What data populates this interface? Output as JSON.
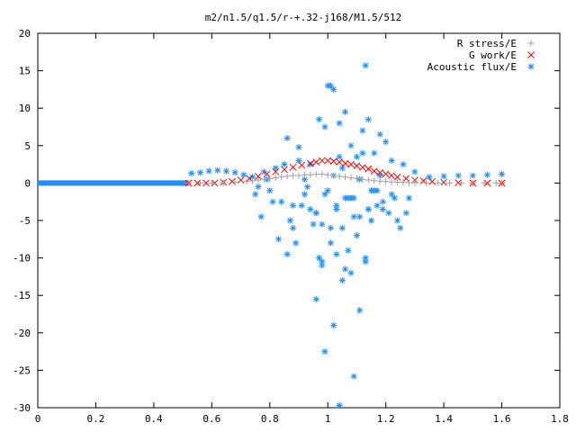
{
  "chart_data": {
    "type": "scatter",
    "title": "m2/n1.5/q1.5/r-+.32-j168/M1.5/512",
    "xlabel": "",
    "ylabel": "",
    "xlim": [
      0,
      1.8
    ],
    "ylim": [
      -30,
      20
    ],
    "xticks": [
      "0",
      "0.2",
      "0.4",
      "0.6",
      "0.8",
      "1",
      "1.2",
      "1.4",
      "1.6",
      "1.8"
    ],
    "yticks": [
      "-30",
      "-25",
      "-20",
      "-15",
      "-10",
      "-5",
      "0",
      "5",
      "10",
      "15",
      "20"
    ],
    "grid": false,
    "legend_position": "top-right",
    "series": [
      {
        "name": "R stress/E",
        "marker": "+",
        "color": "#a0a0a0",
        "x": [
          0.52,
          0.56,
          0.6,
          0.64,
          0.68,
          0.72,
          0.74,
          0.76,
          0.78,
          0.8,
          0.82,
          0.84,
          0.86,
          0.88,
          0.9,
          0.92,
          0.94,
          0.96,
          0.98,
          1.0,
          1.02,
          1.04,
          1.06,
          1.08,
          1.1,
          1.12,
          1.14,
          1.16,
          1.18,
          1.2,
          1.22,
          1.24,
          1.26,
          1.28,
          1.3,
          1.34,
          1.38,
          1.42,
          1.46,
          1.5,
          1.54,
          1.58,
          1.6
        ],
        "y": [
          0,
          0,
          0,
          0.05,
          0.1,
          0.2,
          0.3,
          0.4,
          0.5,
          0.6,
          0.7,
          0.8,
          0.9,
          1.0,
          1.0,
          1.1,
          1.1,
          1.2,
          1.2,
          1.1,
          1.0,
          0.9,
          0.8,
          0.7,
          0.6,
          0.5,
          0.4,
          0.3,
          0.25,
          0.2,
          0.15,
          0.1,
          0.1,
          0.05,
          0.05,
          0,
          0,
          0,
          0,
          0,
          0,
          0,
          0
        ]
      },
      {
        "name": "G work/E",
        "marker": "x",
        "color": "#ff0000",
        "x": [
          0.52,
          0.55,
          0.58,
          0.61,
          0.64,
          0.67,
          0.7,
          0.73,
          0.76,
          0.79,
          0.82,
          0.85,
          0.88,
          0.91,
          0.94,
          0.96,
          0.98,
          1.0,
          1.02,
          1.04,
          1.06,
          1.08,
          1.1,
          1.12,
          1.14,
          1.16,
          1.18,
          1.2,
          1.22,
          1.24,
          1.27,
          1.3,
          1.33,
          1.36,
          1.4,
          1.45,
          1.5,
          1.55,
          1.6
        ],
        "y": [
          0,
          0,
          0,
          0,
          0.1,
          0.2,
          0.4,
          0.6,
          0.9,
          1.2,
          1.5,
          1.8,
          2.1,
          2.4,
          2.6,
          2.8,
          3.0,
          3.0,
          2.9,
          2.8,
          2.6,
          2.5,
          2.3,
          2.1,
          1.9,
          1.6,
          1.4,
          1.2,
          1.0,
          0.8,
          0.6,
          0.4,
          0.3,
          0.2,
          0.1,
          0.05,
          0,
          0,
          0
        ]
      },
      {
        "name": "Acoustic flux/E",
        "marker": "*",
        "color": "#1e90ff",
        "x": [
          0.53,
          0.56,
          0.59,
          0.62,
          0.65,
          0.68,
          0.71,
          0.74,
          0.76,
          0.78,
          0.8,
          0.82,
          0.84,
          0.86,
          0.88,
          0.9,
          0.92,
          0.94,
          0.96,
          0.97,
          0.98,
          0.99,
          1.0,
          1.01,
          1.02,
          1.03,
          1.04,
          1.05,
          1.06,
          1.07,
          1.08,
          1.09,
          1.1,
          1.11,
          1.12,
          1.13,
          1.14,
          1.15,
          1.16,
          1.17,
          1.18,
          1.19,
          1.2,
          1.22,
          1.24,
          1.26,
          1.28,
          1.3,
          1.35,
          1.4,
          1.45,
          1.5,
          1.55,
          1.6,
          0.75,
          0.77,
          0.79,
          0.81,
          0.83,
          0.85,
          0.87,
          0.89,
          0.91,
          0.93,
          0.95,
          0.97,
          0.99,
          1.01,
          1.03,
          1.05,
          1.07,
          1.09,
          1.11,
          1.13,
          1.15,
          1.17,
          1.19,
          1.21,
          1.23,
          1.25,
          1.27,
          0.86,
          0.9,
          0.94,
          0.98,
          1.02,
          1.06,
          1.1,
          1.14,
          1.18,
          1.22,
          0.88,
          0.92,
          0.96,
          1.0,
          1.04,
          1.08,
          1.12,
          1.16,
          0.96,
          0.99,
          1.02,
          1.05,
          1.08,
          1.11,
          1.14,
          1.04,
          1.09,
          1.13,
          0.98,
          1.01,
          1.03,
          1.06
        ],
        "y": [
          1.3,
          1.4,
          1.6,
          1.7,
          1.6,
          1.4,
          1.1,
          0.8,
          -0.5,
          1.5,
          -1.0,
          2.0,
          -2.5,
          6.0,
          -3.0,
          3.0,
          -1.5,
          2.5,
          -4.0,
          8.5,
          -5.5,
          7.5,
          13.0,
          -6.0,
          12.5,
          -3.5,
          8.0,
          2.0,
          9.5,
          -2.0,
          5.0,
          -4.5,
          3.5,
          0.5,
          7.0,
          -10.0,
          8.5,
          -1.0,
          4.0,
          -3.0,
          6.5,
          -2.5,
          5.5,
          3.0,
          -5.0,
          2.5,
          -2.0,
          1.5,
          0.8,
          0.9,
          1.0,
          1.0,
          1.1,
          1.2,
          -1.5,
          -4.5,
          0.5,
          -2.5,
          -7.5,
          2.5,
          -5.0,
          -8.0,
          -3.0,
          -0.5,
          -5.5,
          -10.0,
          -1.5,
          -8.0,
          -3.0,
          -6.0,
          -9.0,
          -2.0,
          -4.5,
          -10.5,
          -5.0,
          -1.0,
          -3.5,
          -4.0,
          -2.0,
          -6.0,
          -4.0,
          -9.5,
          4.8,
          -3.5,
          -11.0,
          1.0,
          -2.0,
          -7.0,
          -3.5,
          1.0,
          -1.5,
          -6.0,
          0.5,
          -4.0,
          -1.0,
          3.5,
          -2.0,
          4.0,
          -1.0,
          -15.5,
          -22.5,
          -19.0,
          -13.0,
          -12.0,
          -17.0,
          -3.5,
          -29.7,
          -25.8,
          15.7,
          -10.5,
          13.0,
          -9.5,
          -11.5
        ]
      }
    ]
  }
}
